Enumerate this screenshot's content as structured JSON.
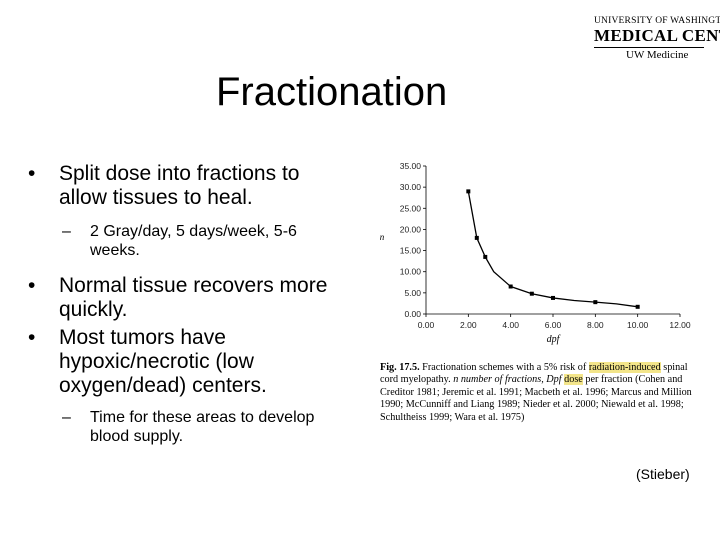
{
  "logo": {
    "line1": "UNIVERSITY OF WASHINGTON",
    "line2": "MEDICAL CENTER",
    "line3": "UW Medicine"
  },
  "slide": {
    "title": "Fractionation",
    "bullet1": "Split dose into fractions to allow tissues to heal.",
    "sub1": "2 Gray/day, 5 days/week, 5-6 weeks.",
    "bullet2": "Normal tissue recovers more quickly.",
    "bullet3": "Most tumors have hypoxic/necrotic (low oxygen/dead) centers.",
    "sub2": "Time for these areas to develop blood supply.",
    "bullet_symbol": "•",
    "dash_symbol": "–",
    "source": "(Stieber)"
  },
  "caption": {
    "fig_label": "Fig. 17.5.",
    "part1": "Fractionation schemes with a 5% risk of",
    "highlight1": "radiation-induced",
    "part2": "spinal cord myelopathy.",
    "n_def": "n number of fractions,",
    "dpf_def": "Dpf",
    "highlight2": "dose",
    "part3": "per fraction (Cohen and Creditor 1981; Jeremic et al. 1991; Macbeth et al. 1996; Marcus and Million 1990; McCunniff and Liang 1989; Nieder et al. 2000; Niewald et al. 1998; Schultheiss 1999; Wara et al. 1975)"
  },
  "chart_data": {
    "type": "line",
    "xlabel": "dpf",
    "ylabel": "n",
    "xlim": [
      0,
      12
    ],
    "ylim": [
      0,
      35
    ],
    "x_ticks": [
      "0.00",
      "2.00",
      "4.00",
      "6.00",
      "8.00",
      "10.00",
      "12.00"
    ],
    "y_ticks": [
      "0.00",
      "5.00",
      "10.00",
      "15.00",
      "20.00",
      "25.00",
      "30.00",
      "35.00"
    ],
    "x": [
      2.0,
      2.4,
      2.8,
      3.2,
      4.0,
      5.0,
      6.0,
      7.0,
      8.0,
      9.0,
      10.0
    ],
    "y": [
      29.0,
      18.0,
      13.5,
      10.0,
      6.5,
      4.8,
      3.8,
      3.2,
      2.8,
      2.4,
      1.7
    ],
    "markers": [
      [
        2.0,
        29.0
      ],
      [
        2.4,
        18.0
      ],
      [
        2.8,
        13.5
      ],
      [
        4.0,
        6.5
      ],
      [
        5.0,
        4.8
      ],
      [
        6.0,
        3.8
      ],
      [
        8.0,
        2.8
      ],
      [
        10.0,
        1.7
      ]
    ],
    "grid": false
  }
}
